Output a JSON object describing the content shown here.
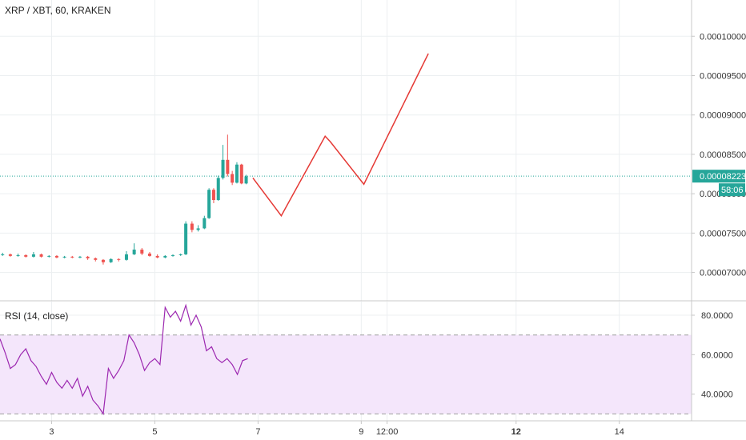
{
  "chart_data": [
    {
      "type": "candlestick",
      "title": "XRP / XBT, 60, KRAKEN",
      "colors": {
        "up": "#26a69a",
        "down": "#ef5350",
        "projection": "#e53935",
        "last_price": "#26a69a"
      },
      "y_ticks": [
        "0.00010000",
        "0.00009500",
        "0.00009000",
        "0.00008500",
        "0.00008000",
        "0.00007500",
        "0.00007000"
      ],
      "y_tick_values": [
        0.0001,
        9.5e-05,
        9e-05,
        8.5e-05,
        8e-05,
        7.5e-05,
        7e-05
      ],
      "ylim": [
        6.64e-05,
        0.0001046
      ],
      "x_ticks": [
        "3",
        "5",
        "7",
        "9",
        "12:00",
        "12",
        "14"
      ],
      "x_tick_values": [
        3,
        5,
        7,
        9,
        9.5,
        12,
        14
      ],
      "xlim": [
        2.0,
        15.4
      ],
      "last_price": "0.00008223",
      "last_price_value": 8.223e-05,
      "countdown": "58:06",
      "candles": [
        {
          "x": 2.05,
          "open": 7.22e-05,
          "close": 7.23e-05,
          "high": 7.25e-05,
          "low": 7.21e-05
        },
        {
          "x": 2.2,
          "open": 7.23e-05,
          "close": 7.21e-05,
          "high": 7.24e-05,
          "low": 7.2e-05
        },
        {
          "x": 2.35,
          "open": 7.21e-05,
          "close": 7.22e-05,
          "high": 7.24e-05,
          "low": 7.2e-05
        },
        {
          "x": 2.5,
          "open": 7.22e-05,
          "close": 7.2e-05,
          "high": 7.23e-05,
          "low": 7.19e-05
        },
        {
          "x": 2.65,
          "open": 7.2e-05,
          "close": 7.23e-05,
          "high": 7.26e-05,
          "low": 7.19e-05
        },
        {
          "x": 2.8,
          "open": 7.23e-05,
          "close": 7.2e-05,
          "high": 7.24e-05,
          "low": 7.19e-05
        },
        {
          "x": 2.95,
          "open": 7.2e-05,
          "close": 7.21e-05,
          "high": 7.22e-05,
          "low": 7.19e-05
        },
        {
          "x": 3.1,
          "open": 7.21e-05,
          "close": 7.19e-05,
          "high": 7.22e-05,
          "low": 7.18e-05
        },
        {
          "x": 3.25,
          "open": 7.19e-05,
          "close": 7.2e-05,
          "high": 7.21e-05,
          "low": 7.18e-05
        },
        {
          "x": 3.4,
          "open": 7.2e-05,
          "close": 7.19e-05,
          "high": 7.21e-05,
          "low": 7.18e-05
        },
        {
          "x": 3.55,
          "open": 7.19e-05,
          "close": 7.2e-05,
          "high": 7.21e-05,
          "low": 7.18e-05
        },
        {
          "x": 3.7,
          "open": 7.2e-05,
          "close": 7.18e-05,
          "high": 7.21e-05,
          "low": 7.16e-05
        },
        {
          "x": 3.85,
          "open": 7.18e-05,
          "close": 7.16e-05,
          "high": 7.19e-05,
          "low": 7.14e-05
        },
        {
          "x": 4.0,
          "open": 7.16e-05,
          "close": 7.13e-05,
          "high": 7.17e-05,
          "low": 7.1e-05
        },
        {
          "x": 4.15,
          "open": 7.13e-05,
          "close": 7.17e-05,
          "high": 7.18e-05,
          "low": 7.12e-05
        },
        {
          "x": 4.3,
          "open": 7.17e-05,
          "close": 7.16e-05,
          "high": 7.18e-05,
          "low": 7.14e-05
        },
        {
          "x": 4.45,
          "open": 7.16e-05,
          "close": 7.23e-05,
          "high": 7.27e-05,
          "low": 7.15e-05
        },
        {
          "x": 4.6,
          "open": 7.23e-05,
          "close": 7.29e-05,
          "high": 7.37e-05,
          "low": 7.22e-05
        },
        {
          "x": 4.75,
          "open": 7.29e-05,
          "close": 7.24e-05,
          "high": 7.31e-05,
          "low": 7.22e-05
        },
        {
          "x": 4.9,
          "open": 7.24e-05,
          "close": 7.21e-05,
          "high": 7.26e-05,
          "low": 7.2e-05
        },
        {
          "x": 5.05,
          "open": 7.21e-05,
          "close": 7.19e-05,
          "high": 7.23e-05,
          "low": 7.18e-05
        },
        {
          "x": 5.2,
          "open": 7.19e-05,
          "close": 7.21e-05,
          "high": 7.22e-05,
          "low": 7.18e-05
        },
        {
          "x": 5.35,
          "open": 7.21e-05,
          "close": 7.22e-05,
          "high": 7.23e-05,
          "low": 7.2e-05
        },
        {
          "x": 5.5,
          "open": 7.22e-05,
          "close": 7.23e-05,
          "high": 7.24e-05,
          "low": 7.21e-05
        },
        {
          "x": 5.6,
          "open": 7.23e-05,
          "close": 7.62e-05,
          "high": 7.65e-05,
          "low": 7.22e-05
        },
        {
          "x": 5.72,
          "open": 7.62e-05,
          "close": 7.54e-05,
          "high": 7.65e-05,
          "low": 7.51e-05
        },
        {
          "x": 5.84,
          "open": 7.54e-05,
          "close": 7.56e-05,
          "high": 7.6e-05,
          "low": 7.52e-05
        },
        {
          "x": 5.96,
          "open": 7.56e-05,
          "close": 7.69e-05,
          "high": 7.72e-05,
          "low": 7.55e-05
        },
        {
          "x": 6.05,
          "open": 7.69e-05,
          "close": 8.05e-05,
          "high": 8.07e-05,
          "low": 7.68e-05
        },
        {
          "x": 6.14,
          "open": 8.05e-05,
          "close": 7.92e-05,
          "high": 8.07e-05,
          "low": 7.88e-05
        },
        {
          "x": 6.23,
          "open": 7.92e-05,
          "close": 8.2e-05,
          "high": 8.23e-05,
          "low": 7.91e-05
        },
        {
          "x": 6.32,
          "open": 8.2e-05,
          "close": 8.43e-05,
          "high": 8.62e-05,
          "low": 8.18e-05
        },
        {
          "x": 6.41,
          "open": 8.43e-05,
          "close": 8.25e-05,
          "high": 8.75e-05,
          "low": 8.22e-05
        },
        {
          "x": 6.5,
          "open": 8.25e-05,
          "close": 8.14e-05,
          "high": 8.29e-05,
          "low": 8.11e-05
        },
        {
          "x": 6.59,
          "open": 8.14e-05,
          "close": 8.37e-05,
          "high": 8.4e-05,
          "low": 8.13e-05
        },
        {
          "x": 6.68,
          "open": 8.37e-05,
          "close": 8.13e-05,
          "high": 8.38e-05,
          "low": 8.12e-05
        },
        {
          "x": 6.77,
          "open": 8.13e-05,
          "close": 8.22e-05,
          "high": 8.24e-05,
          "low": 8.12e-05
        }
      ],
      "projection": [
        {
          "x": 6.9,
          "y": 8.2e-05
        },
        {
          "x": 7.45,
          "y": 7.72e-05
        },
        {
          "x": 8.3,
          "y": 8.73e-05
        },
        {
          "x": 8.4,
          "y": 8.66e-05
        },
        {
          "x": 9.05,
          "y": 8.12e-05
        },
        {
          "x": 10.3,
          "y": 9.78e-05
        }
      ]
    },
    {
      "type": "line",
      "title": "RSI (14, close)",
      "y_ticks": [
        "80.0000",
        "60.0000",
        "40.0000"
      ],
      "y_tick_values": [
        80,
        60,
        40
      ],
      "ylim": [
        26.5,
        86.9
      ],
      "band": [
        30,
        70
      ],
      "colors": {
        "line": "#9c27b0",
        "band_fill": "#f4e6fb",
        "band_border": "#9e9e9e"
      },
      "x": [
        2.0,
        2.1,
        2.2,
        2.3,
        2.4,
        2.5,
        2.6,
        2.7,
        2.8,
        2.9,
        3.0,
        3.1,
        3.2,
        3.3,
        3.4,
        3.5,
        3.6,
        3.7,
        3.8,
        3.9,
        4.0,
        4.1,
        4.2,
        4.3,
        4.4,
        4.5,
        4.6,
        4.7,
        4.8,
        4.9,
        5.0,
        5.1,
        5.2,
        5.3,
        5.4,
        5.5,
        5.6,
        5.7,
        5.8,
        5.9,
        6.0,
        6.1,
        6.2,
        6.3,
        6.4,
        6.5,
        6.6,
        6.7,
        6.8
      ],
      "y": [
        68,
        61,
        53,
        55,
        60,
        63,
        57,
        54,
        49,
        45,
        51,
        46,
        43,
        47,
        43,
        48,
        39,
        44,
        37,
        34,
        30,
        53,
        48,
        52,
        57,
        70,
        66,
        60,
        52,
        56,
        58,
        55,
        84,
        79,
        82,
        77,
        85,
        75,
        80,
        74,
        62,
        64,
        58,
        56,
        58,
        55,
        50,
        57,
        58
      ]
    }
  ]
}
